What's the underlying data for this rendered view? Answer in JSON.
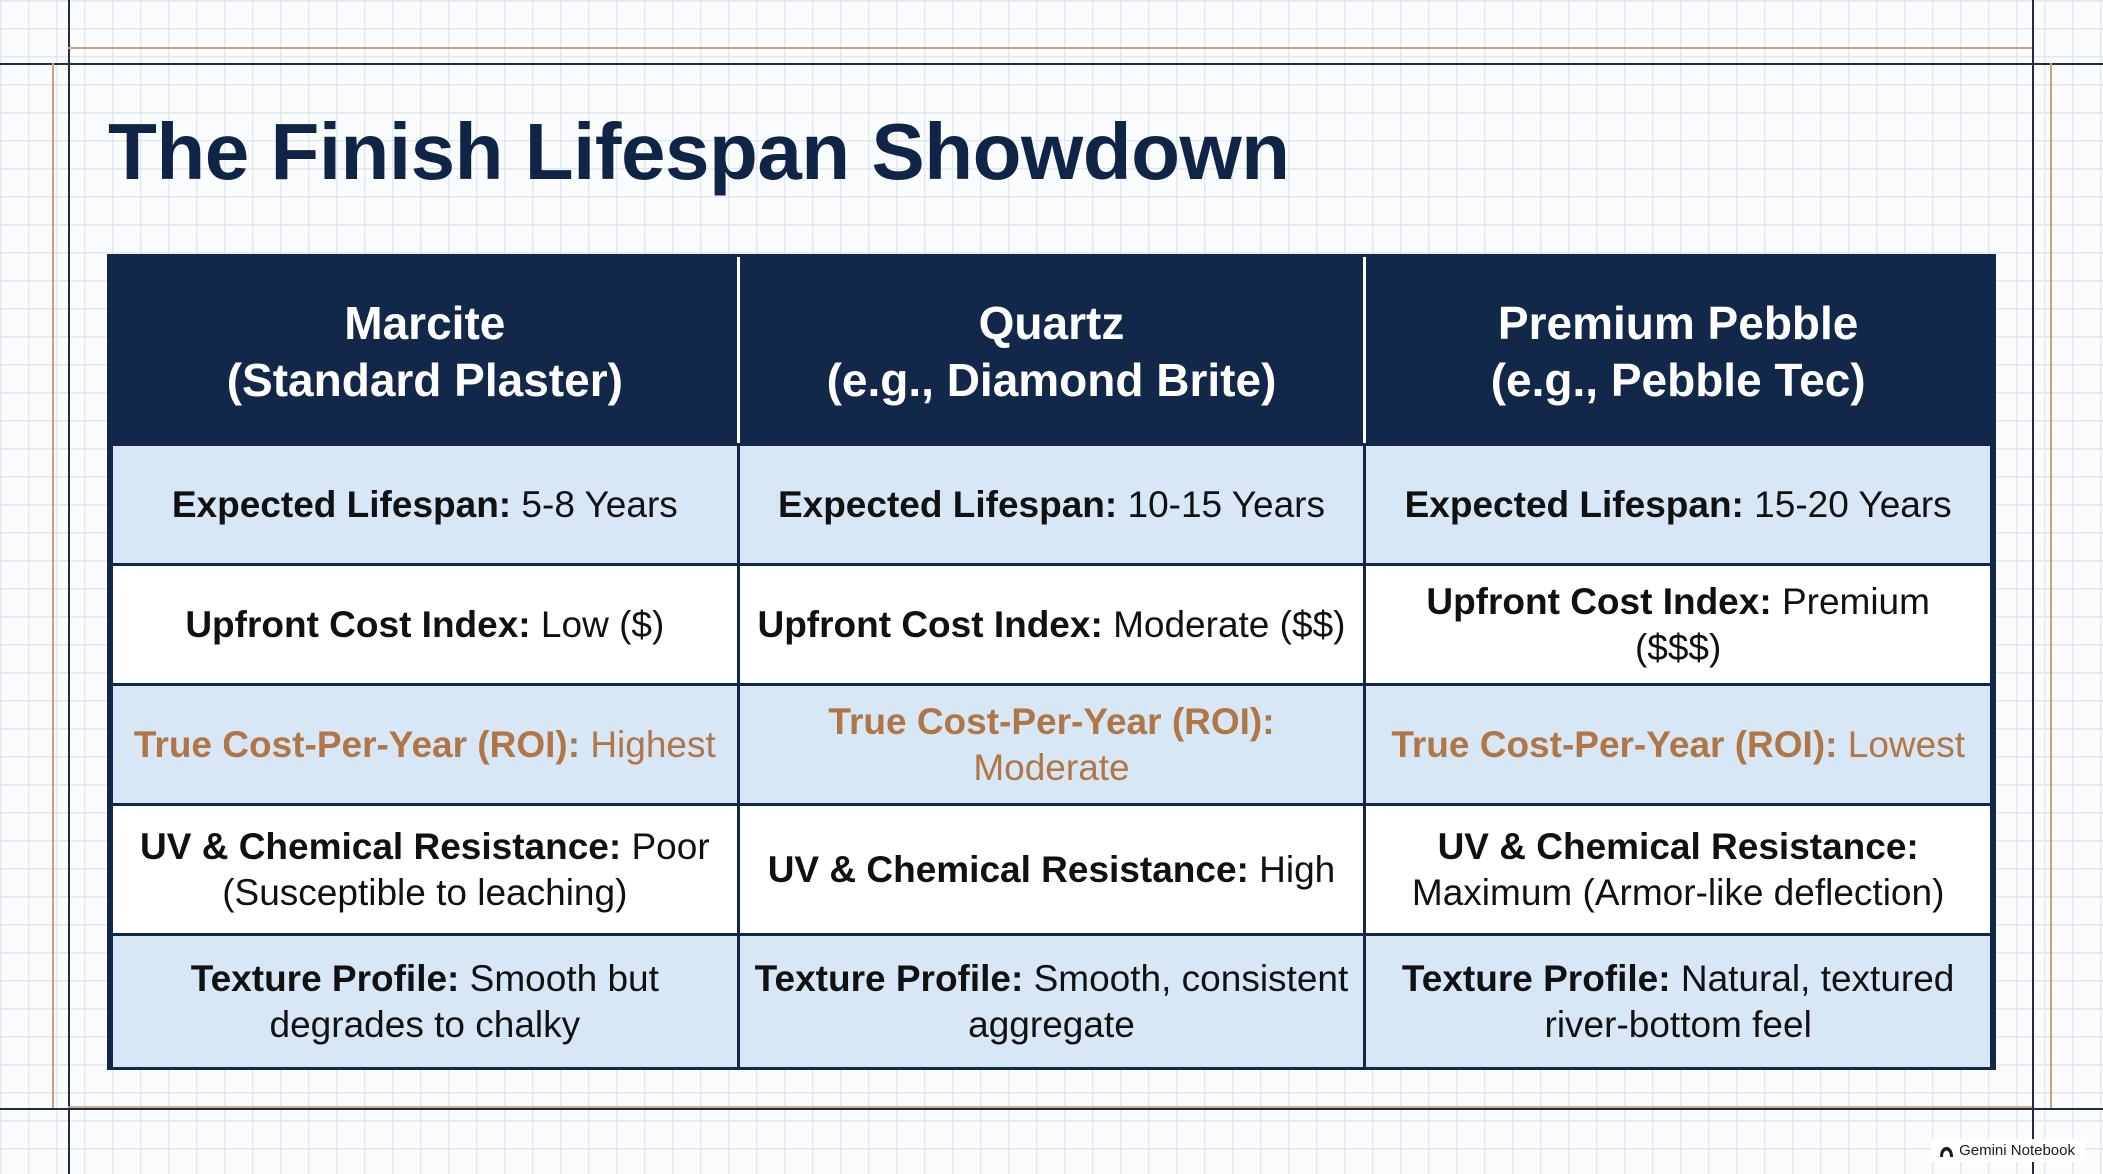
{
  "title": "The Finish Lifespan Showdown",
  "colors": {
    "header_bg": "#12284a",
    "title_text": "#0f2547",
    "row_blue": "#d7e7f6",
    "row_white": "#ffffff",
    "roi_text": "#b17646",
    "accent_line": "#c9a27c"
  },
  "table": {
    "columns": [
      {
        "line1": "Marcite",
        "line2": "(Standard Plaster)"
      },
      {
        "line1": "Quartz",
        "line2": "(e.g., Diamond Brite)"
      },
      {
        "line1": "Premium Pebble",
        "line2": "(e.g., Pebble Tec)"
      }
    ],
    "rows": [
      {
        "label": "Expected Lifespan:",
        "values": [
          "5-8 Years",
          "10-15 Years",
          "15-20 Years"
        ]
      },
      {
        "label": "Upfront Cost Index:",
        "values": [
          "Low ($)",
          "Moderate ($$)",
          "Premium ($$$)"
        ]
      },
      {
        "label": "True Cost-Per-Year (ROI):",
        "values": [
          "Highest",
          "Moderate",
          "Lowest"
        ]
      },
      {
        "label": "UV & Chemical Resistance:",
        "values": [
          "Poor (Susceptible to leaching)",
          "High",
          "Maximum (Armor-like deflection)"
        ]
      },
      {
        "label": "Texture Profile:",
        "values": [
          "Smooth but degrades to chalky",
          "Smooth, consistent aggregate",
          "Natural, textured river-bottom feel"
        ]
      }
    ]
  },
  "badge": {
    "icon": "gemini-notebook-icon",
    "label": "Gemini Notebook"
  }
}
